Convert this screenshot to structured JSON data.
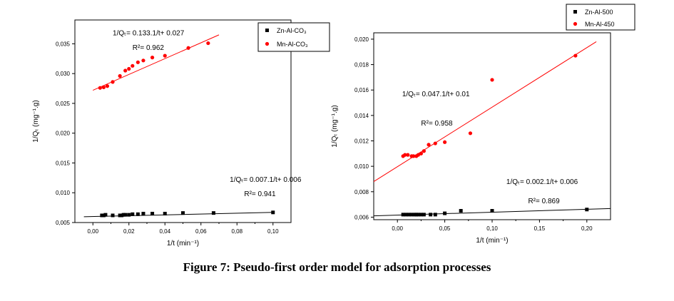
{
  "caption": "Figure 7: Pseudo-first order model for adsorption processes",
  "chart_data": [
    {
      "type": "scatter",
      "xlabel": "1/t (min⁻¹)",
      "ylabel": "1/Qₜ (mg⁻¹.g)",
      "xlim": [
        -0.01,
        0.11
      ],
      "ylim": [
        0.005,
        0.039
      ],
      "xticks": [
        "0,00",
        "0,02",
        "0,04",
        "0,06",
        "0,08",
        "0,10"
      ],
      "xtick_values": [
        0.0,
        0.02,
        0.04,
        0.06,
        0.08,
        0.1
      ],
      "yticks": [
        "0,005",
        "0,010",
        "0,015",
        "0,020",
        "0,025",
        "0,030",
        "0,035"
      ],
      "ytick_values": [
        0.005,
        0.01,
        0.015,
        0.02,
        0.025,
        0.03,
        0.035
      ],
      "legend_position": "top-right",
      "series": [
        {
          "name": "Zn-Al-CO₃",
          "color": "#000000",
          "marker": "square",
          "x": [
            0.005,
            0.006,
            0.007,
            0.011,
            0.015,
            0.016,
            0.017,
            0.018,
            0.02,
            0.022,
            0.025,
            0.028,
            0.033,
            0.04,
            0.05,
            0.067,
            0.1
          ],
          "y": [
            0.0062,
            0.0062,
            0.0063,
            0.0062,
            0.0062,
            0.0062,
            0.0063,
            0.0063,
            0.0063,
            0.0064,
            0.0064,
            0.0065,
            0.0065,
            0.0065,
            0.0066,
            0.0066,
            0.0067
          ],
          "fit": {
            "x": [
              -0.005,
              0.1
            ],
            "y": [
              0.00597,
              0.00671
            ]
          }
        },
        {
          "name": "Mn-Al-CO₃",
          "color": "#ff0000",
          "marker": "circle",
          "x": [
            0.004,
            0.006,
            0.008,
            0.011,
            0.015,
            0.018,
            0.02,
            0.022,
            0.025,
            0.028,
            0.033,
            0.04,
            0.053,
            0.064
          ],
          "y": [
            0.0276,
            0.0277,
            0.0279,
            0.0286,
            0.0296,
            0.0305,
            0.0308,
            0.0313,
            0.0319,
            0.0322,
            0.0327,
            0.033,
            0.0343,
            0.0351
          ],
          "fit": {
            "x": [
              0.0,
              0.07
            ],
            "y": [
              0.0272,
              0.0365
            ]
          }
        }
      ],
      "annotations": [
        {
          "text": "1/Qₜ= 0.133.1/t+ 0.027",
          "ax": 0.011,
          "ay": 0.0364
        },
        {
          "text": "R²= 0.962",
          "ax": 0.022,
          "ay": 0.034
        },
        {
          "text": "1/Qₜ= 0.007.1/t+ 0.006",
          "ax": 0.076,
          "ay": 0.0118
        },
        {
          "text": "R²= 0.941",
          "ax": 0.084,
          "ay": 0.0094
        }
      ]
    },
    {
      "type": "scatter",
      "xlabel": "1/t (min⁻¹)",
      "ylabel": "1/Qₜ (mg⁻¹.g)",
      "xlim": [
        -0.025,
        0.225
      ],
      "ylim": [
        0.0058,
        0.0205
      ],
      "xticks": [
        "0,00",
        "0,05",
        "0,10",
        "0,15",
        "0,20"
      ],
      "xtick_values": [
        0.0,
        0.05,
        0.1,
        0.15,
        0.2
      ],
      "yticks": [
        "0,006",
        "0,008",
        "0,010",
        "0,012",
        "0,014",
        "0,016",
        "0,018",
        "0,020"
      ],
      "ytick_values": [
        0.006,
        0.008,
        0.01,
        0.012,
        0.014,
        0.016,
        0.018,
        0.02
      ],
      "legend_position": "top-right",
      "series": [
        {
          "name": "Zn-Al-500",
          "color": "#000000",
          "marker": "square",
          "x": [
            0.006,
            0.009,
            0.012,
            0.015,
            0.018,
            0.02,
            0.022,
            0.025,
            0.028,
            0.035,
            0.04,
            0.05,
            0.067,
            0.1,
            0.2
          ],
          "y": [
            0.0062,
            0.0062,
            0.0062,
            0.0062,
            0.0062,
            0.0062,
            0.0062,
            0.0062,
            0.0062,
            0.0062,
            0.0062,
            0.0063,
            0.0065,
            0.0065,
            0.0066
          ],
          "fit": {
            "x": [
              -0.025,
              0.225
            ],
            "y": [
              0.0061,
              0.00668
            ]
          }
        },
        {
          "name": "Mn-Al-450",
          "color": "#ff0000",
          "marker": "circle",
          "x": [
            0.006,
            0.008,
            0.011,
            0.015,
            0.017,
            0.02,
            0.022,
            0.025,
            0.028,
            0.033,
            0.04,
            0.05,
            0.077,
            0.1,
            0.188
          ],
          "y": [
            0.0108,
            0.0109,
            0.0109,
            0.0108,
            0.0108,
            0.0108,
            0.0109,
            0.011,
            0.0112,
            0.0117,
            0.0118,
            0.0119,
            0.0126,
            0.0168,
            0.0187
          ],
          "fit": {
            "x": [
              -0.025,
              0.21
            ],
            "y": [
              0.0088,
              0.0198
            ]
          }
        }
      ],
      "annotations": [
        {
          "text": "1/Qₜ= 0.047.1/t+ 0.01",
          "ax": 0.005,
          "ay": 0.0155
        },
        {
          "text": "R²= 0.958",
          "ax": 0.025,
          "ay": 0.0132
        },
        {
          "text": "1/Qₜ= 0.002.1/t+ 0.006",
          "ax": 0.115,
          "ay": 0.0086
        },
        {
          "text": "R²= 0.869",
          "ax": 0.138,
          "ay": 0.0071
        }
      ]
    }
  ]
}
